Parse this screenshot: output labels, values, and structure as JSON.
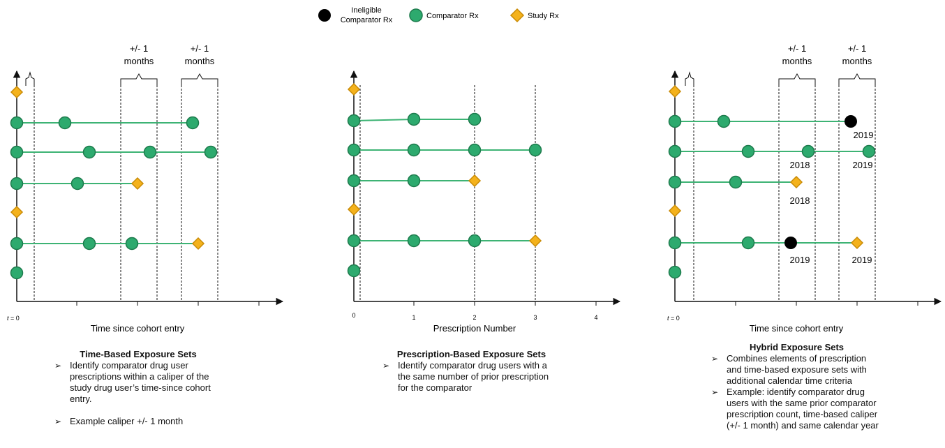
{
  "legend": {
    "ineligible_line1": "Ineligible",
    "ineligible_line2": "Comparator Rx",
    "comparator": "Comparator Rx",
    "study": "Study Rx"
  },
  "colors": {
    "comparator_fill": "#2daa6e",
    "comparator_stroke": "#1d7a4c",
    "comparator_line": "#3db374",
    "study_fill": "#f4b21c",
    "study_stroke": "#c98b06",
    "ineligible": "#000000",
    "axis": "#111111"
  },
  "caliper_line1": "+/- 1",
  "caliper_line2": "months",
  "t0_prefix": "t",
  "t0_suffix": " = 0",
  "time_axis_label": "Time since cohort entry",
  "rx_axis_label": "Prescription Number",
  "rx_ticks": [
    "0",
    "1",
    "2",
    "3",
    "4"
  ],
  "years": {
    "r1": "2019",
    "r2a": "2018",
    "r2b": "2019",
    "r3": "2018",
    "r5a": "2019",
    "r5b": "2019"
  },
  "panels": {
    "time": {
      "title": "Time-Based Exposure Sets",
      "bullets": [
        "Identify comparator drug user prescriptions within a caliper of the study drug user’s time-since cohort entry.",
        "Example caliper +/- 1 month"
      ]
    },
    "rx": {
      "title": "Prescription-Based Exposure Sets",
      "bullets": [
        "Identify comparator drug users with a the same number of prior prescription for the comparator"
      ]
    },
    "hybrid": {
      "title": "Hybrid Exposure Sets",
      "bullets": [
        "Combines elements of prescription and time-based exposure sets with additional calendar time criteria",
        "Example: identify comparator drug users with the same prior comparator prescription count, time-based caliper (+/- 1 month) and same calendar year"
      ]
    }
  }
}
